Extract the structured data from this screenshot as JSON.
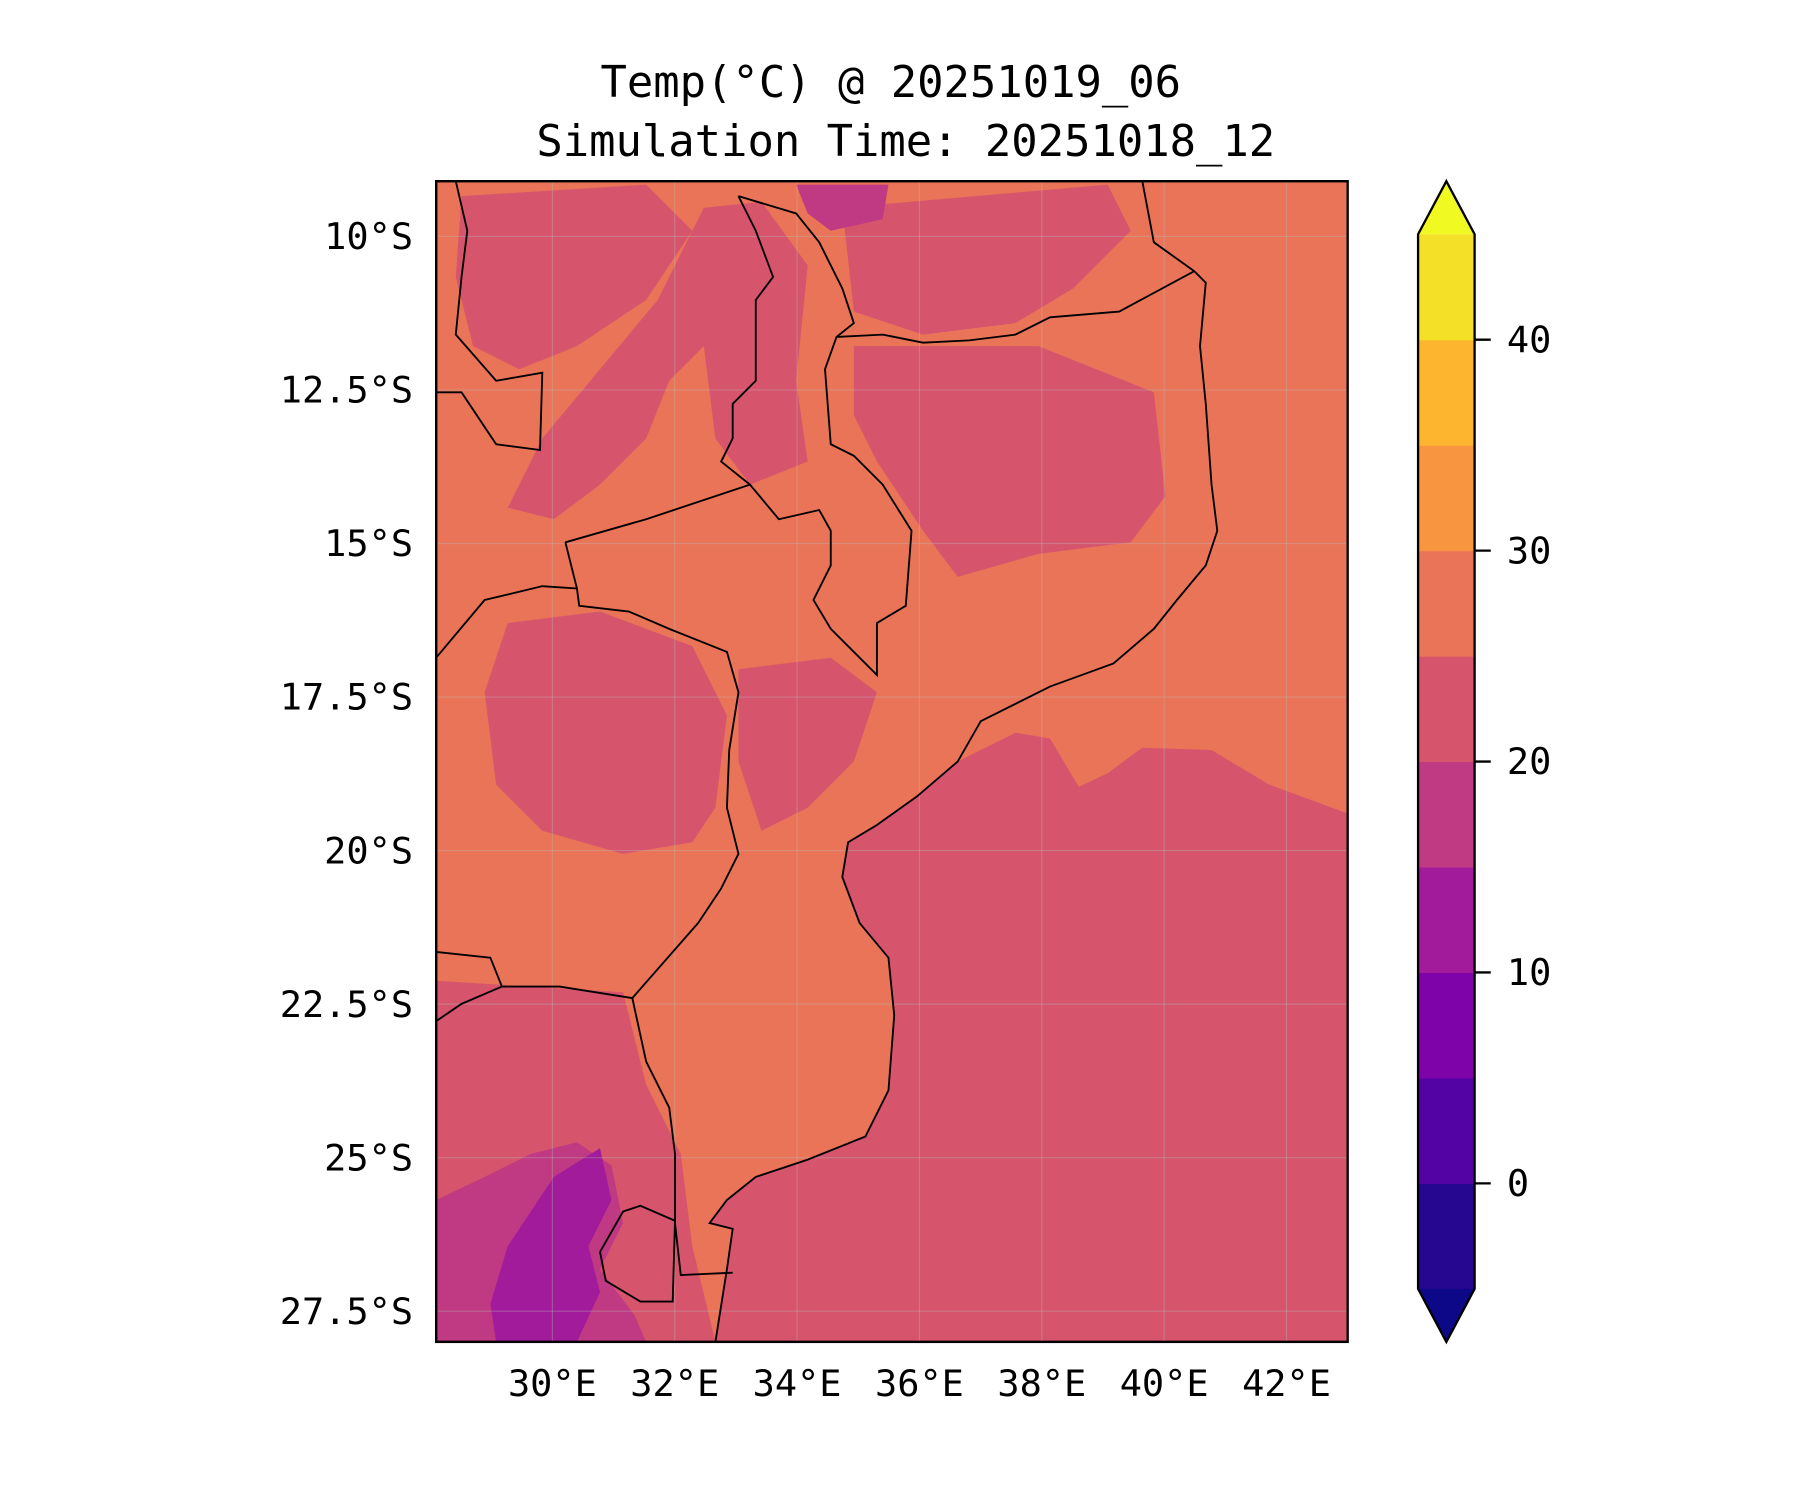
{
  "title": {
    "line1": "Temp(°C) @ 20251019_06",
    "line2": "Simulation Time: 20251018_12"
  },
  "chart_data": {
    "type": "heatmap",
    "variable": "Temperature",
    "units": "°C",
    "valid_time": "20251019_06",
    "simulation_time": "20251018_12",
    "extent": {
      "lon": [
        28.1,
        43.0
      ],
      "lat": [
        -28.0,
        -9.1
      ]
    },
    "x_ticks": [
      {
        "value": 30,
        "label": "30°E"
      },
      {
        "value": 32,
        "label": "32°E"
      },
      {
        "value": 34,
        "label": "34°E"
      },
      {
        "value": 36,
        "label": "36°E"
      },
      {
        "value": 38,
        "label": "38°E"
      },
      {
        "value": 40,
        "label": "40°E"
      },
      {
        "value": 42,
        "label": "42°E"
      }
    ],
    "y_ticks": [
      {
        "value": -10,
        "label": "10°S"
      },
      {
        "value": -12.5,
        "label": "12.5°S"
      },
      {
        "value": -15,
        "label": "15°S"
      },
      {
        "value": -17.5,
        "label": "17.5°S"
      },
      {
        "value": -20,
        "label": "20°S"
      },
      {
        "value": -22.5,
        "label": "22.5°S"
      },
      {
        "value": -25,
        "label": "25°S"
      },
      {
        "value": -27.5,
        "label": "27.5°S"
      }
    ],
    "grid": true,
    "colorbar": {
      "levels": [
        -5,
        0,
        5,
        10,
        15,
        20,
        25,
        30,
        35,
        40,
        45
      ],
      "extend": "both",
      "colors": [
        "#26078f",
        "#5302a3",
        "#7e03a8",
        "#a11b9b",
        "#c03a83",
        "#d6556d",
        "#ea7457",
        "#f89540",
        "#fdb42f",
        "#f4e026"
      ],
      "under_color": "#0d0887",
      "over_color": "#f0f921",
      "ticks": [
        {
          "value": 0,
          "label": "0"
        },
        {
          "value": 10,
          "label": "10"
        },
        {
          "value": 20,
          "label": "20"
        },
        {
          "value": 30,
          "label": "30"
        },
        {
          "value": 40,
          "label": "40"
        }
      ]
    },
    "summary": {
      "ocean_north": "25-30",
      "ocean_south": "20-25",
      "land_dominant": "20-30",
      "southwest_highlands": "10-20"
    }
  }
}
